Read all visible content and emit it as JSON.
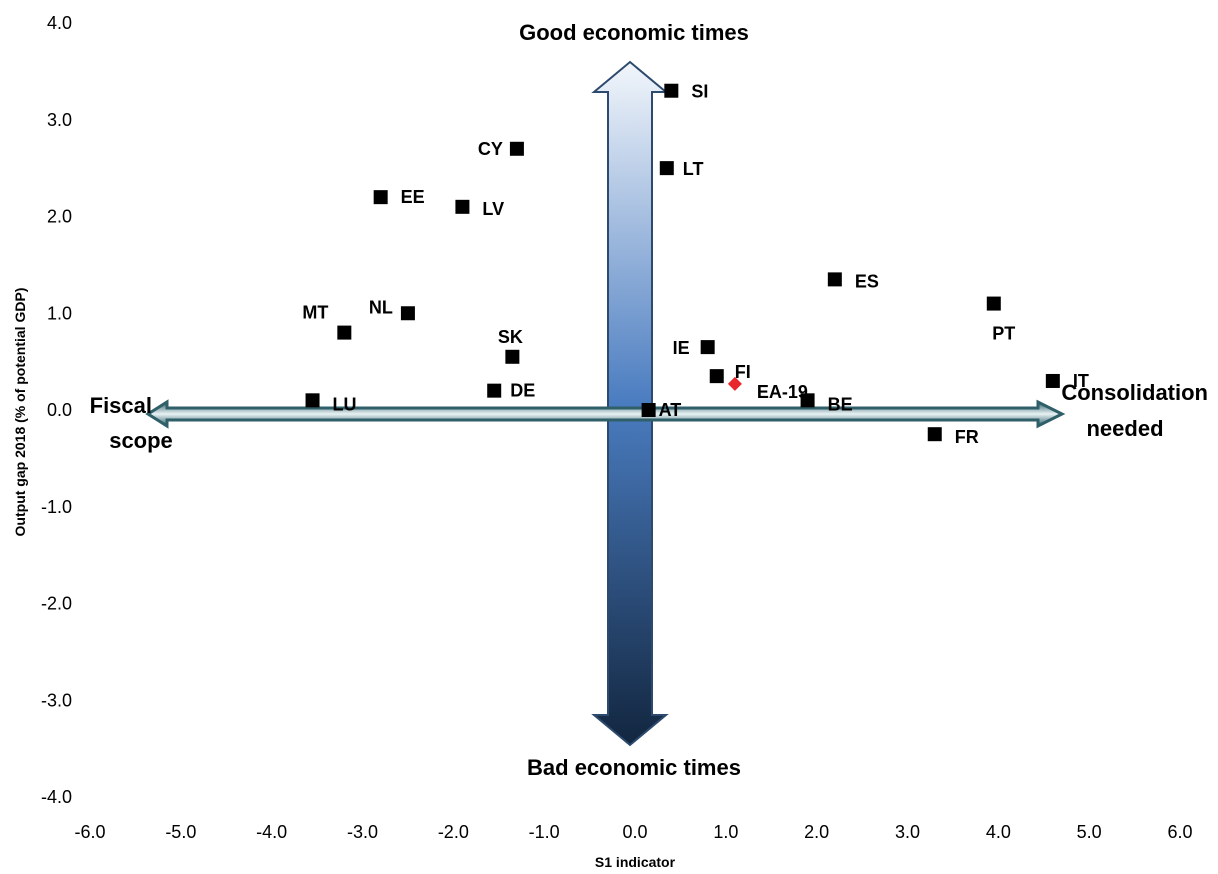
{
  "chart_data": {
    "type": "scatter",
    "xlabel": "S1 indicator",
    "ylabel": "Output gap 2018 (% of potential GDP)",
    "xlim": [
      -6,
      6
    ],
    "ylim": [
      -4,
      4
    ],
    "x_ticks": [
      "-6.0",
      "-5.0",
      "-4.0",
      "-3.0",
      "-2.0",
      "-1.0",
      "0.0",
      "1.0",
      "2.0",
      "3.0",
      "4.0",
      "5.0",
      "6.0"
    ],
    "y_ticks": [
      "-4.0",
      "-3.0",
      "-2.0",
      "-1.0",
      "0.0",
      "1.0",
      "2.0",
      "3.0",
      "4.0"
    ],
    "grid": false,
    "points": [
      {
        "label": "SI",
        "x": 0.4,
        "y": 3.3,
        "marker": "square",
        "color": "#000000"
      },
      {
        "label": "CY",
        "x": -1.3,
        "y": 2.7,
        "marker": "square",
        "color": "#000000"
      },
      {
        "label": "LT",
        "x": 0.35,
        "y": 2.5,
        "marker": "square",
        "color": "#000000"
      },
      {
        "label": "EE",
        "x": -2.8,
        "y": 2.2,
        "marker": "square",
        "color": "#000000"
      },
      {
        "label": "LV",
        "x": -1.9,
        "y": 2.1,
        "marker": "square",
        "color": "#000000"
      },
      {
        "label": "ES",
        "x": 2.2,
        "y": 1.35,
        "marker": "square",
        "color": "#000000"
      },
      {
        "label": "PT",
        "x": 3.95,
        "y": 1.1,
        "marker": "square",
        "color": "#000000"
      },
      {
        "label": "NL",
        "x": -2.5,
        "y": 1.0,
        "marker": "square",
        "color": "#000000"
      },
      {
        "label": "MT",
        "x": -3.2,
        "y": 0.8,
        "marker": "square",
        "color": "#000000"
      },
      {
        "label": "IE",
        "x": 0.8,
        "y": 0.65,
        "marker": "square",
        "color": "#000000"
      },
      {
        "label": "SK",
        "x": -1.35,
        "y": 0.55,
        "marker": "square",
        "color": "#000000"
      },
      {
        "label": "FI",
        "x": 0.9,
        "y": 0.35,
        "marker": "square",
        "color": "#000000"
      },
      {
        "label": "EA-19",
        "x": 1.1,
        "y": 0.27,
        "marker": "diamond",
        "color": "#e8262d"
      },
      {
        "label": "IT",
        "x": 4.6,
        "y": 0.3,
        "marker": "square",
        "color": "#000000"
      },
      {
        "label": "DE",
        "x": -1.55,
        "y": 0.2,
        "marker": "square",
        "color": "#000000"
      },
      {
        "label": "LU",
        "x": -3.55,
        "y": 0.1,
        "marker": "square",
        "color": "#000000"
      },
      {
        "label": "BE",
        "x": 1.9,
        "y": 0.1,
        "marker": "square",
        "color": "#000000"
      },
      {
        "label": "AT",
        "x": 0.15,
        "y": 0.0,
        "marker": "square",
        "color": "#000000"
      },
      {
        "label": "FR",
        "x": 3.3,
        "y": -0.25,
        "marker": "square",
        "color": "#000000"
      }
    ],
    "quadrant_labels": {
      "top": "Good economic times",
      "bottom": "Bad economic times",
      "left_line1": "Fiscal",
      "left_line2": "scope",
      "right_line1": "Consolidation",
      "right_line2": "needed"
    },
    "colors": {
      "horizontal_arrow": "#3b6e78",
      "vertical_arrow_top": "#e6eef8",
      "vertical_arrow_bottom": "#14294a",
      "marker_default": "#000000",
      "marker_aggregate": "#e8262d"
    }
  }
}
